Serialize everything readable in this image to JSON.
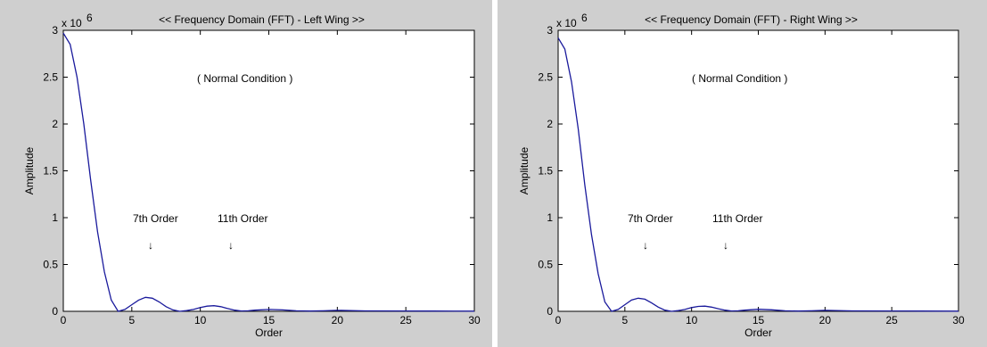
{
  "chart_data": [
    {
      "type": "line",
      "title": "<< Frequency Domain (FFT) - Left Wing >>",
      "xlabel": "Order",
      "ylabel": "Amplitude",
      "exponent_label": "x 10",
      "exponent_power": "6",
      "xlim": [
        0,
        30
      ],
      "ylim": [
        0,
        3
      ],
      "xticks": [
        "0",
        "5",
        "10",
        "15",
        "20",
        "25",
        "30"
      ],
      "yticks": [
        "0",
        "0.5",
        "1",
        "1.5",
        "2",
        "2.5",
        "3"
      ],
      "grid": false,
      "line_color": "#1a1a9c",
      "annotations": {
        "condition": "( Normal Condition )",
        "order7": "7th Order",
        "order11": "11th Order",
        "arrow7": "↓",
        "arrow11": "↓"
      },
      "series": [
        {
          "x": [
            0,
            0.5,
            1,
            1.5,
            2,
            2.5,
            3,
            3.5,
            4,
            4.5,
            5,
            5.5,
            6,
            6.5,
            7,
            7.5,
            8,
            8.5,
            9,
            9.5,
            10,
            10.5,
            11,
            11.5,
            12,
            12.5,
            13,
            13.5,
            14,
            15,
            16,
            17,
            18,
            19,
            20,
            22,
            25,
            27,
            30
          ],
          "y": [
            2.97,
            2.85,
            2.5,
            2.0,
            1.4,
            0.85,
            0.42,
            0.12,
            0.0,
            0.02,
            0.07,
            0.12,
            0.15,
            0.14,
            0.1,
            0.05,
            0.015,
            0.0,
            0.008,
            0.02,
            0.04,
            0.055,
            0.06,
            0.05,
            0.03,
            0.012,
            0.004,
            0.006,
            0.012,
            0.02,
            0.015,
            0.006,
            0.003,
            0.006,
            0.01,
            0.005,
            0.004,
            0.003,
            0.002
          ]
        }
      ]
    },
    {
      "type": "line",
      "title": "<< Frequency Domain (FFT) - Right Wing >>",
      "xlabel": "Order",
      "ylabel": "Amplitude",
      "exponent_label": "x 10",
      "exponent_power": "6",
      "xlim": [
        0,
        30
      ],
      "ylim": [
        0,
        3
      ],
      "xticks": [
        "0",
        "5",
        "10",
        "15",
        "20",
        "25",
        "30"
      ],
      "yticks": [
        "0",
        "0.5",
        "1",
        "1.5",
        "2",
        "2.5",
        "3"
      ],
      "grid": false,
      "line_color": "#1a1a9c",
      "annotations": {
        "condition": "( Normal Condition )",
        "order7": "7th Order",
        "order11": "11th Order",
        "arrow7": "↓",
        "arrow11": "↓"
      },
      "series": [
        {
          "x": [
            0,
            0.5,
            1,
            1.5,
            2,
            2.5,
            3,
            3.5,
            4,
            4.5,
            5,
            5.5,
            6,
            6.5,
            7,
            7.5,
            8,
            8.5,
            9,
            9.5,
            10,
            10.5,
            11,
            11.5,
            12,
            12.5,
            13,
            13.5,
            14,
            15,
            16,
            17,
            18,
            19,
            20,
            22,
            25,
            27,
            30
          ],
          "y": [
            2.92,
            2.8,
            2.45,
            1.95,
            1.35,
            0.82,
            0.4,
            0.1,
            0.0,
            0.02,
            0.07,
            0.12,
            0.14,
            0.13,
            0.09,
            0.045,
            0.012,
            0.0,
            0.008,
            0.02,
            0.04,
            0.052,
            0.055,
            0.045,
            0.028,
            0.012,
            0.004,
            0.006,
            0.012,
            0.022,
            0.016,
            0.006,
            0.003,
            0.006,
            0.01,
            0.005,
            0.004,
            0.003,
            0.002
          ]
        }
      ]
    }
  ]
}
